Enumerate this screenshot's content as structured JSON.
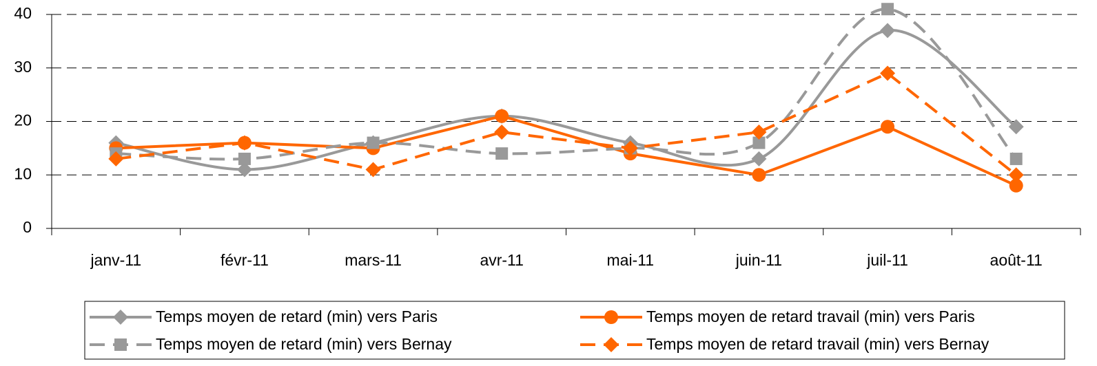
{
  "chart_data": {
    "type": "line",
    "categories": [
      "janv-11",
      "févr-11",
      "mars-11",
      "avr-11",
      "mai-11",
      "juin-11",
      "juil-11",
      "août-11"
    ],
    "series": [
      {
        "name": "Temps moyen de retard (min) vers Paris",
        "color": "#999999",
        "marker": "diamond",
        "dashed": false,
        "smooth": true,
        "values": [
          16,
          11,
          16,
          21,
          16,
          13,
          37,
          19
        ]
      },
      {
        "name": "Temps moyen de retard travail (min) vers Paris",
        "color": "#ff6600",
        "marker": "circle",
        "dashed": false,
        "smooth": false,
        "values": [
          15,
          16,
          15,
          21,
          14,
          10,
          19,
          8
        ]
      },
      {
        "name": "Temps moyen de retard (min) vers Bernay",
        "color": "#999999",
        "marker": "square",
        "dashed": true,
        "smooth": true,
        "values": [
          14,
          13,
          16,
          14,
          15,
          16,
          41,
          13
        ]
      },
      {
        "name": "Temps moyen de retard travail (min) vers Bernay",
        "color": "#ff6600",
        "marker": "diamond",
        "dashed": true,
        "smooth": false,
        "values": [
          13,
          16,
          11,
          18,
          15,
          18,
          29,
          10
        ]
      }
    ],
    "ylim": [
      0,
      40
    ],
    "yticks": [
      0,
      10,
      20,
      30,
      40
    ],
    "grid": true
  }
}
